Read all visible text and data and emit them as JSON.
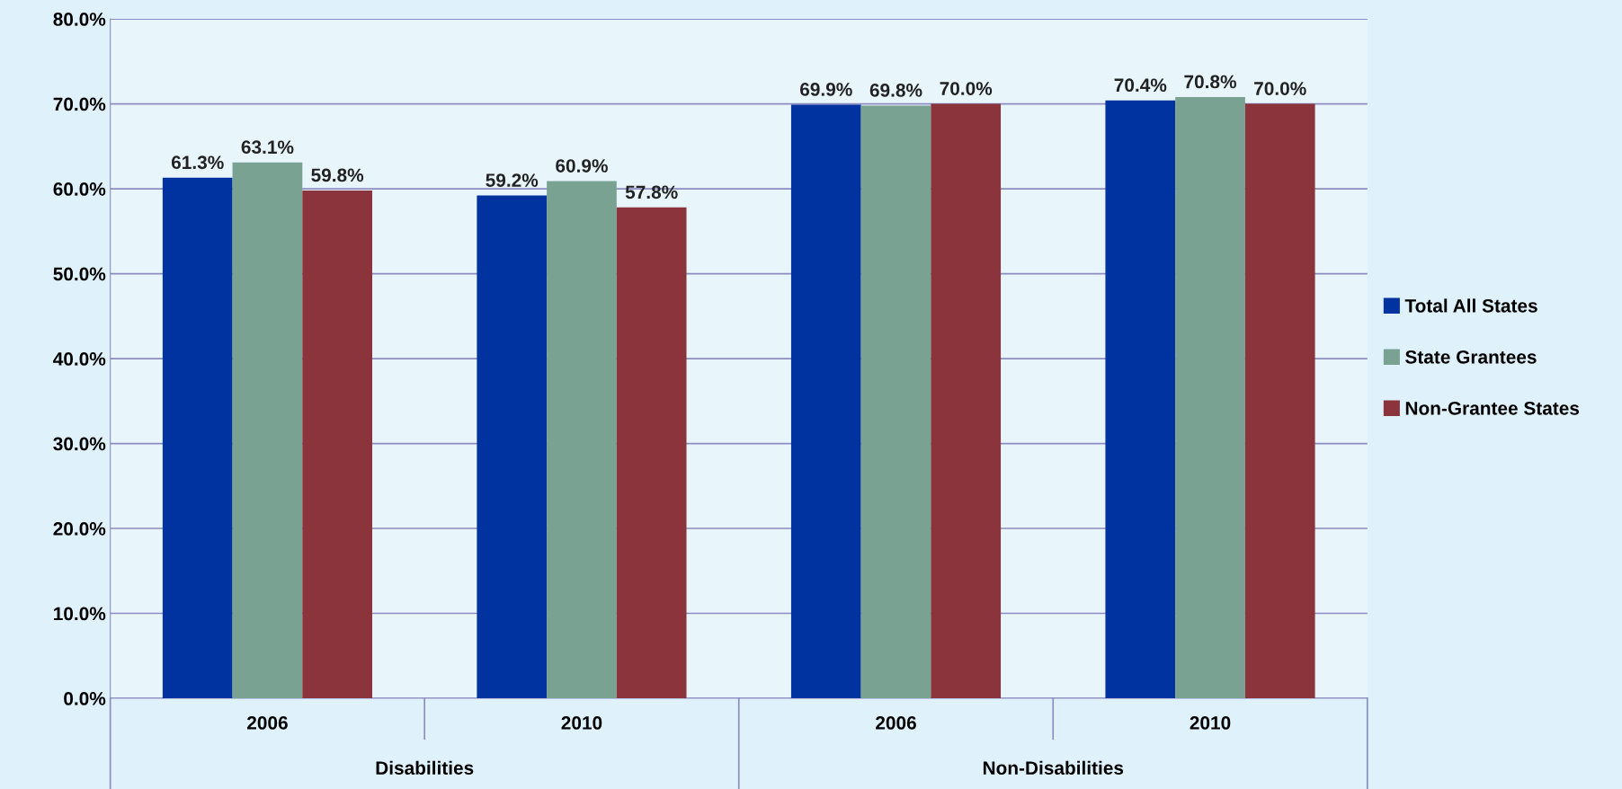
{
  "chart_data": {
    "type": "bar",
    "categories": [
      "2006",
      "2010",
      "2006",
      "2010"
    ],
    "series": [
      {
        "name": "Total All States",
        "color": "#0033a0",
        "values": [
          61.3,
          59.2,
          69.9,
          70.4
        ],
        "value_labels": [
          "61.3%",
          "59.2%",
          "69.9%",
          "70.4%"
        ]
      },
      {
        "name": "State Grantees",
        "color": "#7aa293",
        "values": [
          63.1,
          60.9,
          69.8,
          70.8
        ],
        "value_labels": [
          "63.1%",
          "60.9%",
          "69.8%",
          "70.8%"
        ]
      },
      {
        "name": "Non-Grantee States",
        "color": "#8b343c",
        "values": [
          59.8,
          57.8,
          70.0,
          70.0
        ],
        "value_labels": [
          "59.8%",
          "57.8%",
          "70.0%",
          "70.0%"
        ]
      }
    ],
    "ylim": [
      0,
      80
    ],
    "yticks": [
      {
        "value": 0,
        "label": "0.0%"
      },
      {
        "value": 10,
        "label": "10.0%"
      },
      {
        "value": 20,
        "label": "20.0%"
      },
      {
        "value": 30,
        "label": "30.0%"
      },
      {
        "value": 40,
        "label": "40.0%"
      },
      {
        "value": 50,
        "label": "50.0%"
      },
      {
        "value": 60,
        "label": "60.0%"
      },
      {
        "value": 70,
        "label": "70.0%"
      },
      {
        "value": 80,
        "label": "80.0%"
      }
    ],
    "grid": "y",
    "legend": "right",
    "annotations": [
      "Disabilities",
      "Non-Disabilities"
    ]
  }
}
